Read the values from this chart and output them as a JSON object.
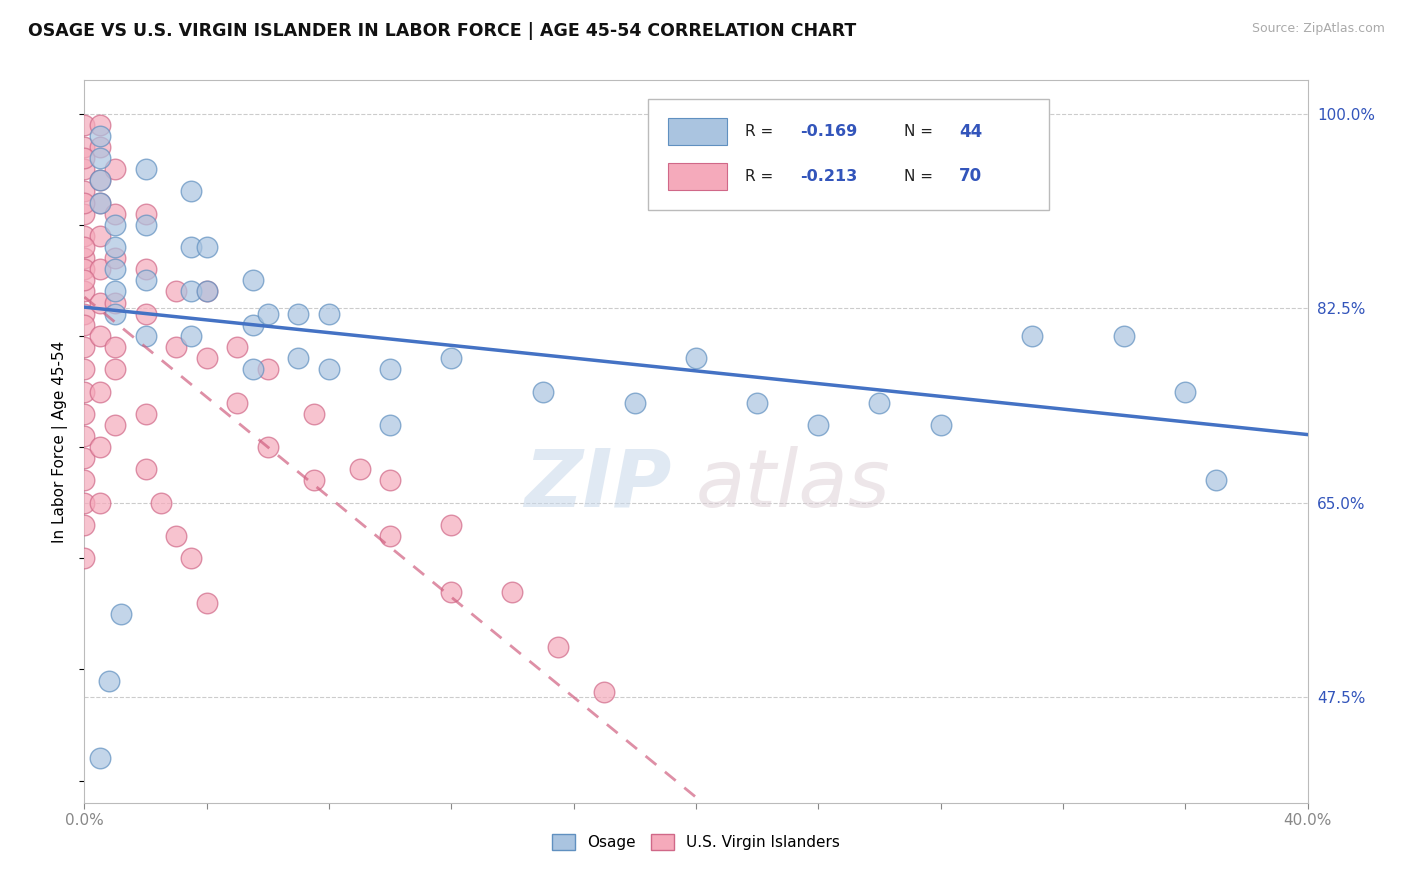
{
  "title": "OSAGE VS U.S. VIRGIN ISLANDER IN LABOR FORCE | AGE 45-54 CORRELATION CHART",
  "source": "Source: ZipAtlas.com",
  "ylabel": "In Labor Force | Age 45-54",
  "xlim": [
    0.0,
    0.4
  ],
  "ylim": [
    0.38,
    1.03
  ],
  "background_color": "#ffffff",
  "grid_color": "#cccccc",
  "osage_color": "#aac4e0",
  "virgin_color": "#f5aabb",
  "osage_edge_color": "#6090c0",
  "virgin_edge_color": "#d06888",
  "blue_line_color": "#4472c4",
  "pink_line_color": "#d06080",
  "watermark_zip": "ZIP",
  "watermark_atlas": "atlas",
  "legend_R_blue": "-0.169",
  "legend_N_blue": "44",
  "legend_R_pink": "-0.213",
  "legend_N_pink": "70",
  "right_yticks": [
    0.475,
    0.65,
    0.825,
    1.0
  ],
  "right_ylabels": [
    "47.5%",
    "65.0%",
    "82.5%",
    "100.0%"
  ],
  "osage_x": [
    0.005,
    0.005,
    0.005,
    0.005,
    0.01,
    0.01,
    0.01,
    0.01,
    0.01,
    0.02,
    0.02,
    0.02,
    0.02,
    0.035,
    0.035,
    0.035,
    0.035,
    0.04,
    0.04,
    0.055,
    0.055,
    0.055,
    0.06,
    0.07,
    0.07,
    0.08,
    0.08,
    0.1,
    0.1,
    0.12,
    0.15,
    0.18,
    0.2,
    0.22,
    0.24,
    0.26,
    0.28,
    0.31,
    0.34,
    0.36,
    0.37,
    0.005,
    0.008,
    0.012
  ],
  "osage_y": [
    0.98,
    0.96,
    0.94,
    0.92,
    0.9,
    0.88,
    0.86,
    0.84,
    0.82,
    0.95,
    0.9,
    0.85,
    0.8,
    0.93,
    0.88,
    0.84,
    0.8,
    0.88,
    0.84,
    0.85,
    0.81,
    0.77,
    0.82,
    0.82,
    0.78,
    0.82,
    0.77,
    0.77,
    0.72,
    0.78,
    0.75,
    0.74,
    0.78,
    0.74,
    0.72,
    0.74,
    0.72,
    0.8,
    0.8,
    0.75,
    0.67,
    0.42,
    0.49,
    0.55
  ],
  "virgin_x": [
    0.0,
    0.0,
    0.0,
    0.0,
    0.0,
    0.0,
    0.0,
    0.0,
    0.0,
    0.0,
    0.0,
    0.0,
    0.0,
    0.0,
    0.0,
    0.0,
    0.0,
    0.0,
    0.0,
    0.0,
    0.005,
    0.005,
    0.005,
    0.005,
    0.005,
    0.005,
    0.005,
    0.005,
    0.01,
    0.01,
    0.01,
    0.01,
    0.01,
    0.02,
    0.02,
    0.02,
    0.03,
    0.03,
    0.04,
    0.04,
    0.05,
    0.05,
    0.06,
    0.06,
    0.075,
    0.075,
    0.09,
    0.1,
    0.1,
    0.12,
    0.12,
    0.14,
    0.155,
    0.17,
    0.0,
    0.0,
    0.0,
    0.0,
    0.0,
    0.005,
    0.005,
    0.005,
    0.01,
    0.01,
    0.02,
    0.02,
    0.025,
    0.03,
    0.035,
    0.04
  ],
  "virgin_y": [
    0.99,
    0.97,
    0.95,
    0.93,
    0.91,
    0.89,
    0.87,
    0.86,
    0.84,
    0.82,
    0.81,
    0.79,
    0.77,
    0.75,
    0.73,
    0.71,
    0.69,
    0.67,
    0.65,
    0.63,
    0.99,
    0.97,
    0.94,
    0.92,
    0.89,
    0.86,
    0.83,
    0.8,
    0.95,
    0.91,
    0.87,
    0.83,
    0.79,
    0.91,
    0.86,
    0.82,
    0.84,
    0.79,
    0.84,
    0.78,
    0.79,
    0.74,
    0.77,
    0.7,
    0.73,
    0.67,
    0.68,
    0.67,
    0.62,
    0.63,
    0.57,
    0.57,
    0.52,
    0.48,
    0.96,
    0.92,
    0.88,
    0.85,
    0.6,
    0.75,
    0.7,
    0.65,
    0.77,
    0.72,
    0.73,
    0.68,
    0.65,
    0.62,
    0.6,
    0.56
  ]
}
